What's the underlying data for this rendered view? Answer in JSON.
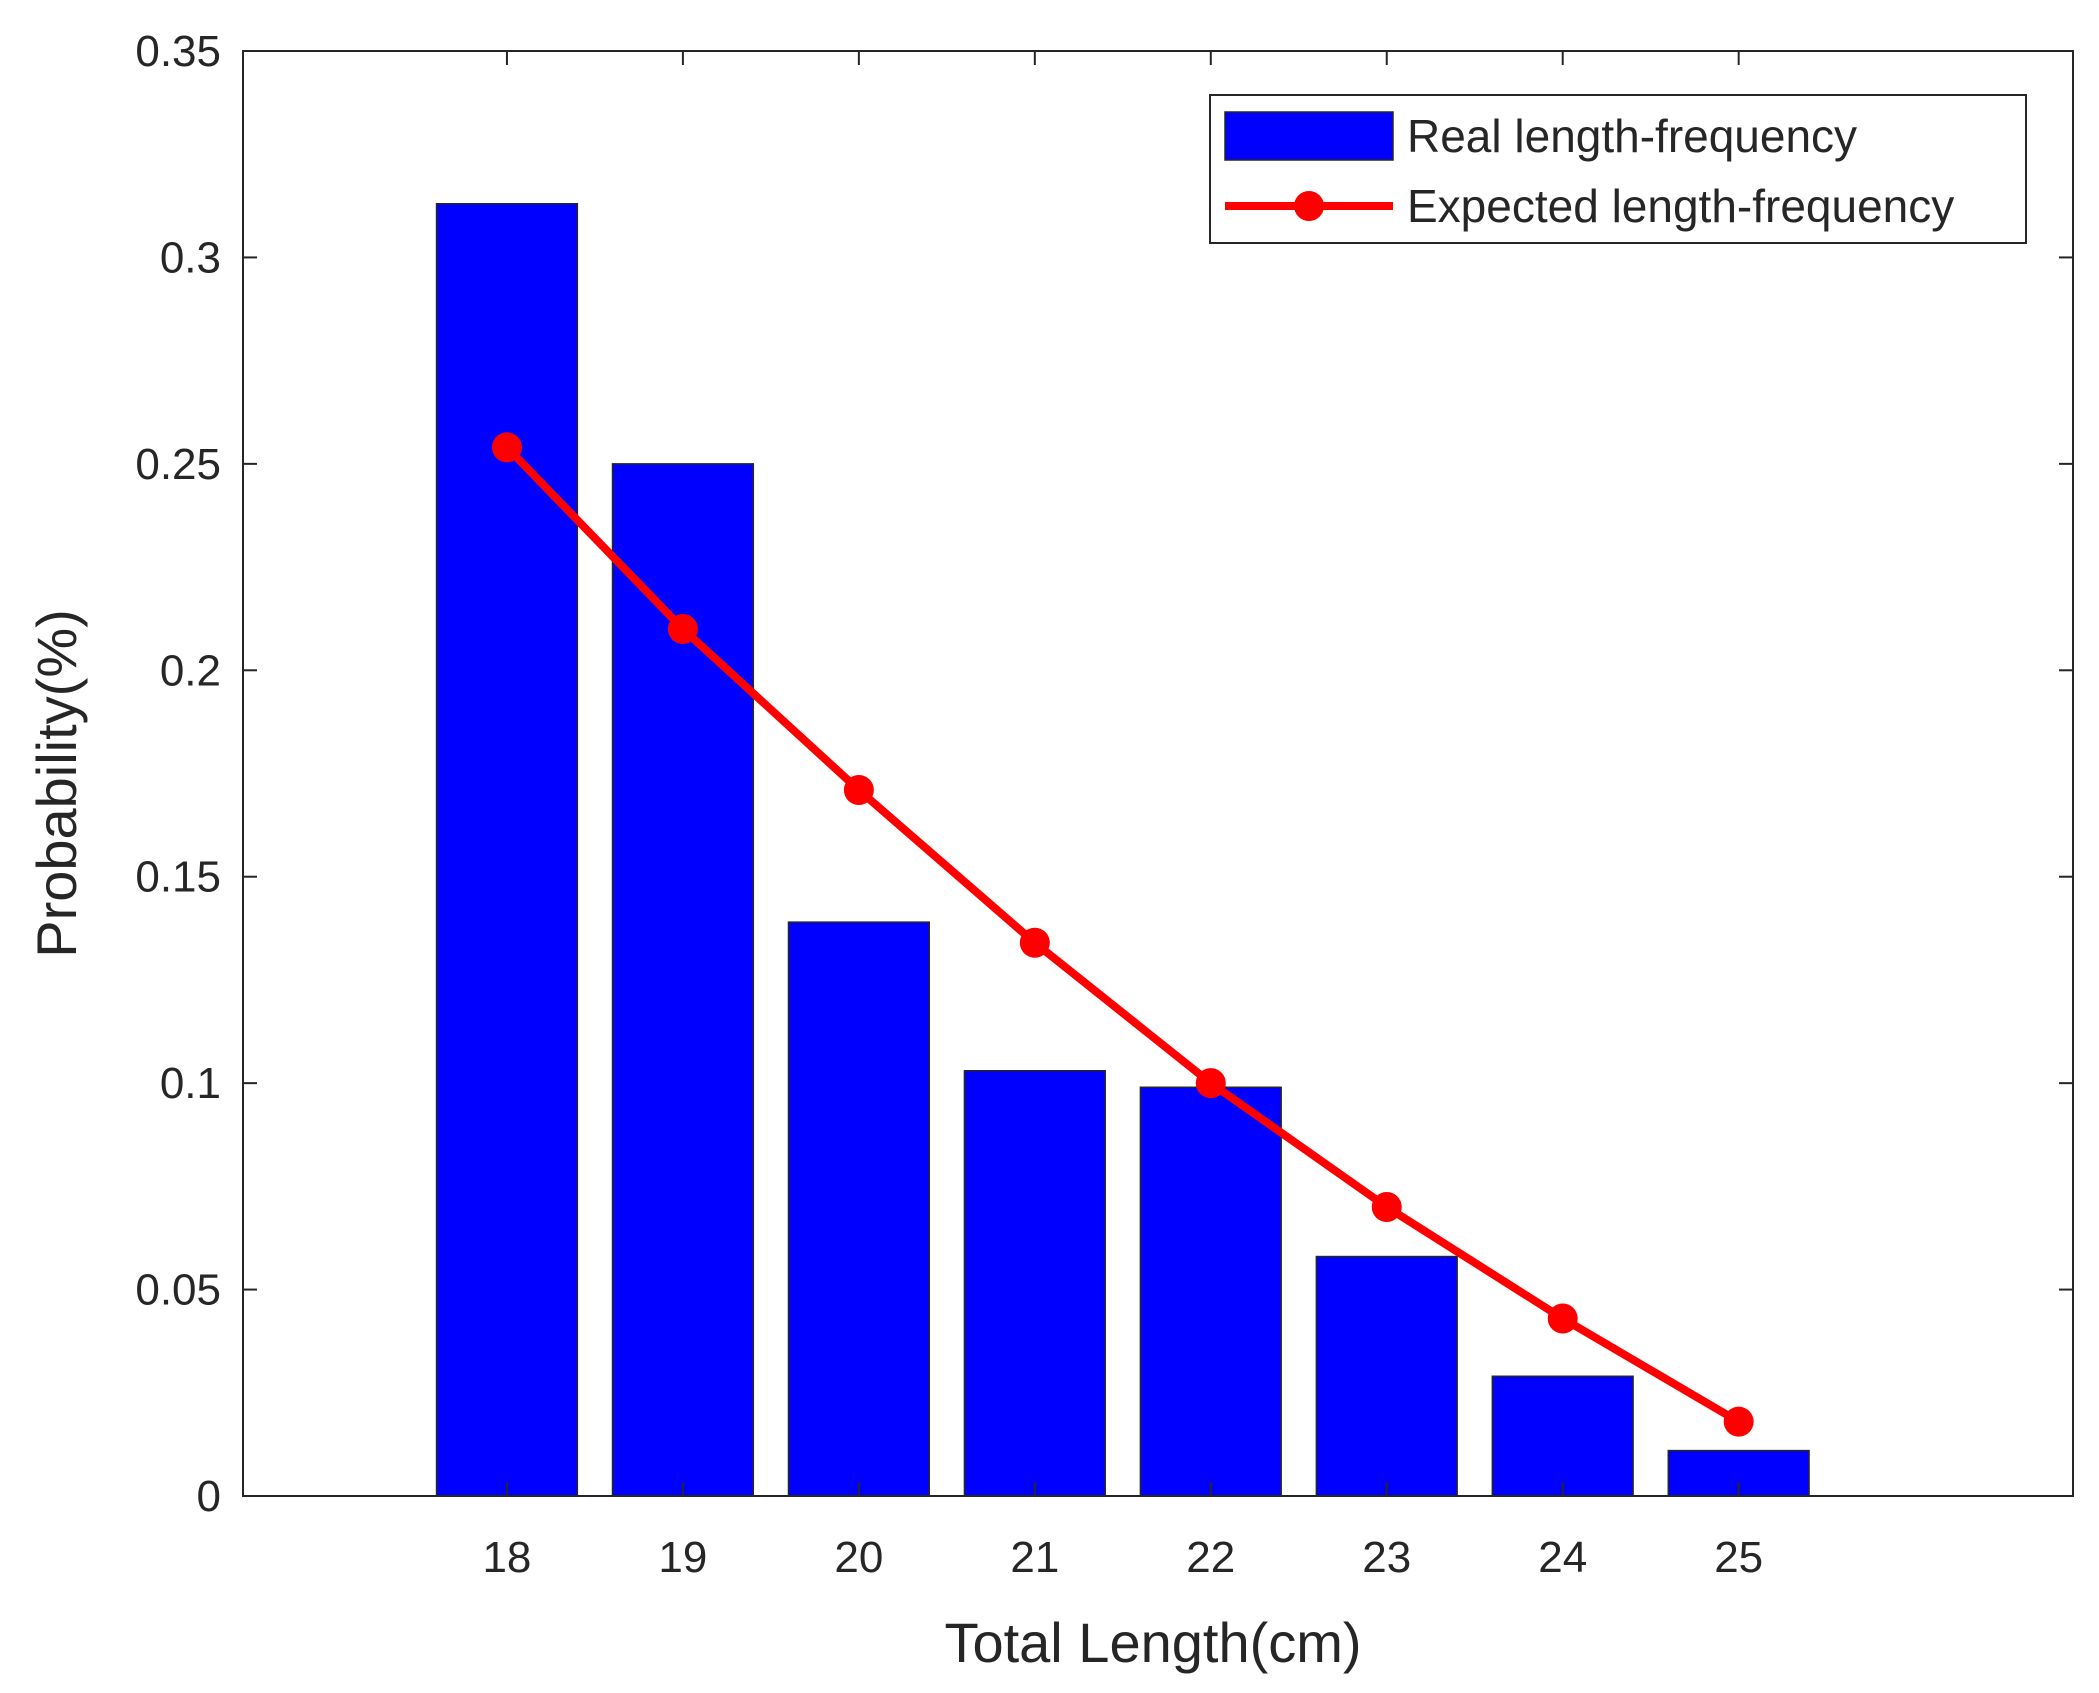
{
  "chart_data": {
    "type": "bar",
    "title": "",
    "xlabel": "Total Length(cm)",
    "ylabel": "Probability(%)",
    "categories": [
      "18",
      "19",
      "20",
      "21",
      "22",
      "23",
      "24",
      "25"
    ],
    "x": [
      18,
      19,
      20,
      21,
      22,
      23,
      24,
      25
    ],
    "xlim": [
      16.5,
      26.9
    ],
    "ylim": [
      0,
      0.35
    ],
    "yticks": [
      0,
      0.05,
      0.1,
      0.15,
      0.2,
      0.25,
      0.3,
      0.35
    ],
    "ytick_labels": [
      "0",
      "0.05",
      "0.1",
      "0.15",
      "0.2",
      "0.25",
      "0.3",
      "0.35"
    ],
    "grid": false,
    "legend_position": "top-right",
    "series": [
      {
        "name": "Real length-frequency",
        "type": "bar",
        "color": "#0000ff",
        "values": [
          0.313,
          0.25,
          0.139,
          0.103,
          0.099,
          0.058,
          0.029,
          0.011
        ]
      },
      {
        "name": "Expected length-frequency",
        "type": "line",
        "color": "#ff0000",
        "marker": "circle",
        "values": [
          0.254,
          0.21,
          0.171,
          0.134,
          0.1,
          0.07,
          0.043,
          0.018
        ]
      }
    ]
  }
}
